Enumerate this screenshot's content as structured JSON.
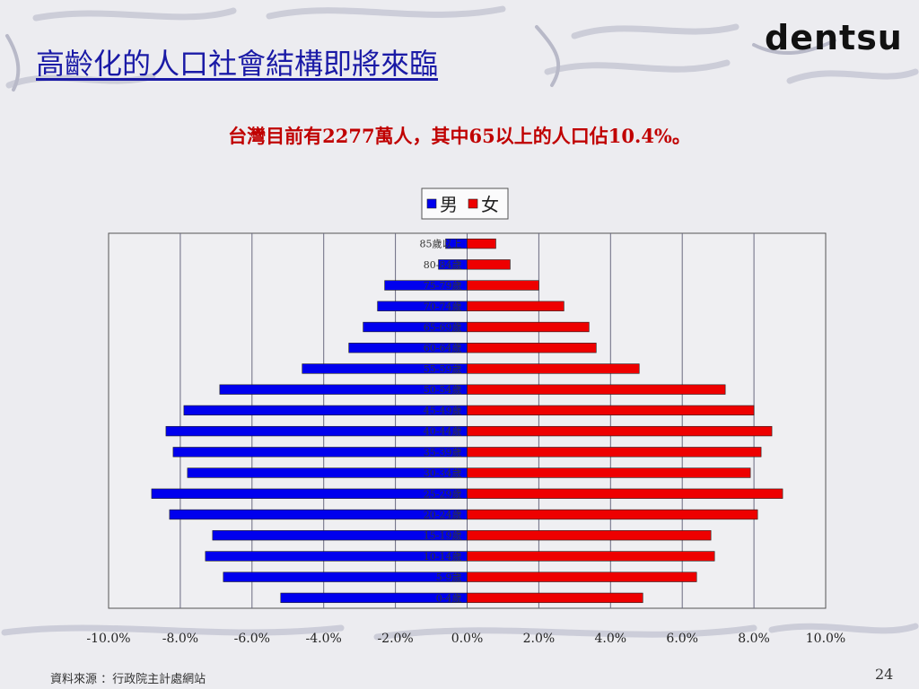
{
  "slide": {
    "title": "高齡化的人口社會結構即將來臨",
    "logo": "dentsu",
    "subtitle": "台灣目前有2277萬人，其中65以上的人口佔10.4%。",
    "source": "資料來源 ：行政院主計處網站",
    "page_number": "24"
  },
  "colors": {
    "male": "#0000ee",
    "female": "#ee0000",
    "title": "#1a1aa6",
    "subtitle": "#c00000"
  },
  "chart_data": {
    "type": "bar",
    "orientation": "horizontal",
    "title": "",
    "xlabel": "",
    "ylabel": "",
    "xlim": [
      -10,
      10
    ],
    "x_ticks": [
      "-10.0%",
      "-8.0%",
      "-6.0%",
      "-4.0%",
      "-2.0%",
      "0.0%",
      "2.0%",
      "4.0%",
      "6.0%",
      "8.0%",
      "10.0%"
    ],
    "legend_position": "top-center",
    "grid": true,
    "categories": [
      "85歲以上",
      "80-84歲",
      "75-79歲",
      "70-74歲",
      "65-69歲",
      "60-64歲",
      "55-59歲",
      "50-54歲",
      "45-49歲",
      "40-44歲",
      "35-39歲",
      "30-34歲",
      "25-29歲",
      "20-24歲",
      "15-19歲",
      "10-14歲",
      "5-9歲",
      "0-4歲"
    ],
    "series": [
      {
        "name": "男",
        "values": [
          -0.6,
          -0.8,
          -2.3,
          -2.5,
          -2.9,
          -3.3,
          -4.6,
          -6.9,
          -7.9,
          -8.4,
          -8.2,
          -7.8,
          -8.8,
          -8.3,
          -7.1,
          -7.3,
          -6.8,
          -5.2
        ]
      },
      {
        "name": "女",
        "values": [
          0.8,
          1.2,
          2.0,
          2.7,
          3.4,
          3.6,
          4.8,
          7.2,
          8.0,
          8.5,
          8.2,
          7.9,
          8.8,
          8.1,
          6.8,
          6.9,
          6.4,
          4.9
        ]
      }
    ]
  }
}
